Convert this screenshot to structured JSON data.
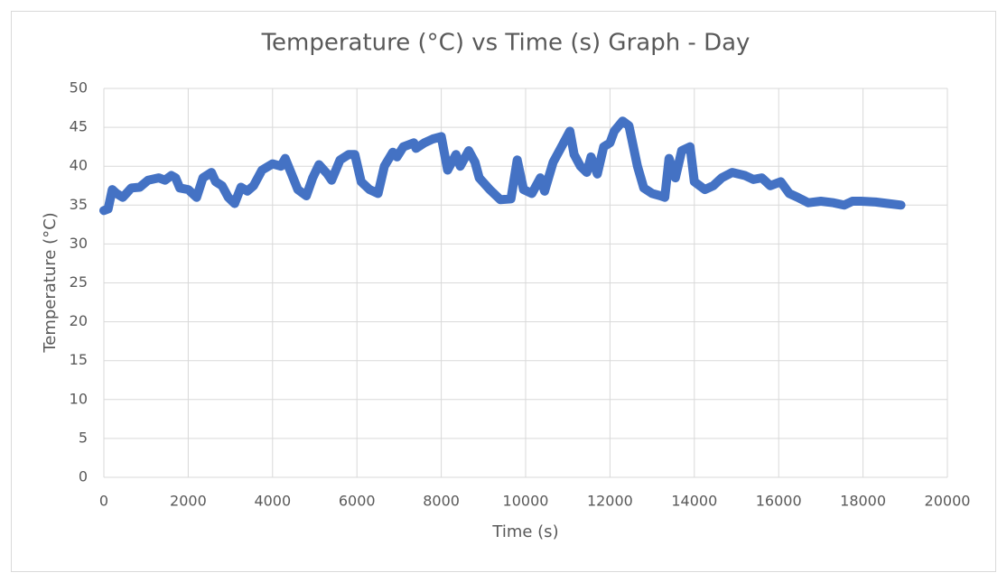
{
  "chart_data": {
    "type": "line",
    "title": "Temperature (°C) vs Time (s) Graph - Day",
    "x_label": "Time (s)",
    "y_label": "Temperature (°C)",
    "color": "#4472c4",
    "grid": true,
    "xlim": [
      0,
      20000
    ],
    "xticks": [
      0,
      2000,
      4000,
      6000,
      8000,
      10000,
      12000,
      14000,
      16000,
      18000,
      20000
    ],
    "ylim": [
      0,
      50
    ],
    "yticks": [
      0,
      5,
      10,
      15,
      20,
      25,
      30,
      35,
      40,
      45,
      50
    ],
    "x": [
      0,
      100,
      200,
      300,
      450,
      650,
      850,
      1050,
      1300,
      1450,
      1600,
      1700,
      1800,
      2000,
      2200,
      2350,
      2550,
      2650,
      2800,
      2950,
      3100,
      3250,
      3400,
      3550,
      3750,
      4000,
      4200,
      4300,
      4450,
      4600,
      4800,
      4950,
      5100,
      5300,
      5400,
      5600,
      5800,
      5950,
      6100,
      6300,
      6500,
      6650,
      6850,
      6950,
      7100,
      7350,
      7400,
      7600,
      7800,
      8000,
      8150,
      8350,
      8450,
      8650,
      8800,
      8900,
      9150,
      9400,
      9650,
      9800,
      9950,
      10150,
      10350,
      10450,
      10650,
      10800,
      11050,
      11150,
      11300,
      11450,
      11550,
      11700,
      11850,
      12000,
      12100,
      12300,
      12450,
      12650,
      12800,
      13000,
      13200,
      13300,
      13400,
      13550,
      13700,
      13900,
      14000,
      14250,
      14450,
      14650,
      14900,
      15200,
      15400,
      15600,
      15800,
      16050,
      16250,
      16450,
      16700,
      17000,
      17300,
      17550,
      17750,
      17950,
      18300,
      18600,
      18900
    ],
    "values": [
      34.3,
      34.5,
      37,
      36.5,
      36,
      37.2,
      37.3,
      38.2,
      38.5,
      38.2,
      38.8,
      38.5,
      37.2,
      37,
      36,
      38.5,
      39.2,
      38,
      37.5,
      36,
      35.2,
      37.3,
      36.8,
      37.5,
      39.5,
      40.3,
      40,
      41,
      39,
      37,
      36.2,
      38.5,
      40.2,
      39,
      38.2,
      40.8,
      41.5,
      41.5,
      38,
      37,
      36.5,
      40,
      41.8,
      41.2,
      42.5,
      43,
      42.3,
      43,
      43.5,
      43.8,
      39.5,
      41.5,
      40,
      42,
      40.5,
      38.5,
      37,
      35.7,
      35.8,
      40.8,
      37,
      36.5,
      38.5,
      36.8,
      40.5,
      42,
      44.5,
      41.5,
      40,
      39.2,
      41.2,
      39,
      42.5,
      43,
      44.5,
      45.8,
      45.2,
      40,
      37.2,
      36.5,
      36.2,
      36,
      41,
      38.5,
      42,
      42.5,
      38,
      37,
      37.5,
      38.5,
      39.2,
      38.8,
      38.3,
      38.5,
      37.5,
      38,
      36.5,
      36,
      35.3,
      35.5,
      35.3,
      35,
      35.5,
      35.5,
      35.4,
      35.2,
      35
    ]
  }
}
